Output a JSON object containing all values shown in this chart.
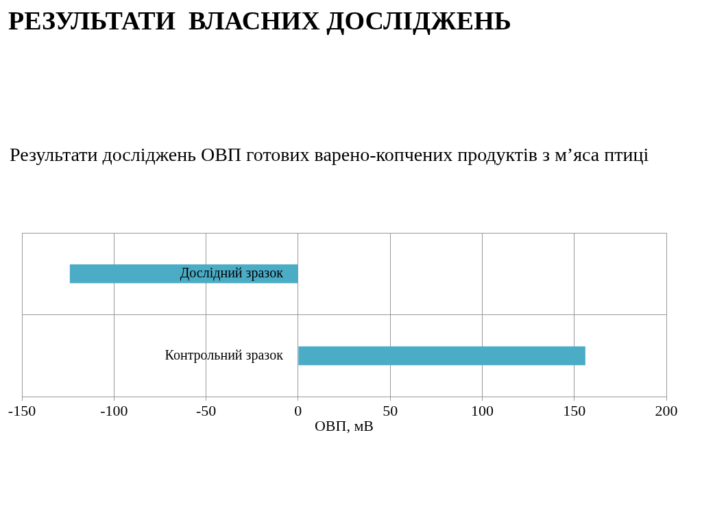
{
  "chart_data": {
    "type": "bar",
    "orientation": "horizontal",
    "title": "РЕЗУЛЬТАТИ  ВЛАСНИХ ДОСЛІДЖЕНЬ",
    "subtitle": "Результати досліджень ОВП готових варено-копчених продуктів з м’яса птиці",
    "xlabel": "ОВП, мВ",
    "categories": [
      "Дослідний зразок",
      "Контрольний зразок"
    ],
    "values": [
      -124,
      156
    ],
    "color": "#4bacc6",
    "xlim": [
      -150,
      200
    ],
    "xticks": [
      -150,
      -100,
      -50,
      0,
      50,
      100,
      150,
      200
    ],
    "grid": true,
    "legend": false
  }
}
